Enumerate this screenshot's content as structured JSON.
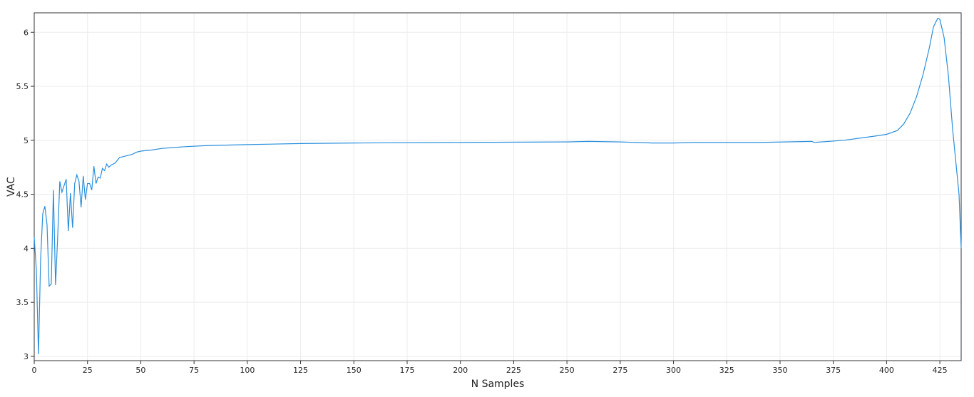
{
  "chart_data": {
    "type": "line",
    "x_label": "N Samples",
    "y_label": "VAC",
    "xlim": [
      0,
      435
    ],
    "ylim": [
      2.96,
      6.18
    ],
    "xticks": [
      0,
      25,
      50,
      75,
      100,
      125,
      150,
      175,
      200,
      225,
      250,
      275,
      300,
      325,
      350,
      375,
      400,
      425
    ],
    "yticks": [
      3,
      3.5,
      4,
      4.5,
      5,
      5.5,
      6
    ],
    "grid": true,
    "series": [
      {
        "color": "#2a8fdd",
        "x": [
          0,
          1,
          2,
          3,
          4,
          5,
          6,
          7,
          8,
          9,
          10,
          11,
          12,
          13,
          14,
          15,
          16,
          17,
          18,
          19,
          20,
          21,
          22,
          23,
          24,
          25,
          26,
          27,
          28,
          29,
          30,
          31,
          32,
          33,
          34,
          35,
          36,
          38,
          40,
          42,
          44,
          46,
          48,
          50,
          55,
          60,
          70,
          80,
          100,
          125,
          150,
          200,
          250,
          260,
          275,
          290,
          300,
          310,
          340,
          365,
          366,
          380,
          395,
          400,
          405,
          408,
          411,
          414,
          417,
          420,
          422,
          424,
          425,
          427,
          429,
          431,
          433,
          434,
          435
        ],
        "values": [
          4.1,
          3.8,
          3.02,
          3.9,
          4.32,
          4.39,
          4.22,
          3.65,
          3.67,
          4.54,
          3.66,
          4.1,
          4.62,
          4.52,
          4.58,
          4.64,
          4.16,
          4.51,
          4.19,
          4.6,
          4.68,
          4.62,
          4.38,
          4.67,
          4.45,
          4.6,
          4.6,
          4.54,
          4.76,
          4.6,
          4.66,
          4.65,
          4.74,
          4.72,
          4.78,
          4.75,
          4.77,
          4.79,
          4.84,
          4.85,
          4.86,
          4.87,
          4.89,
          4.9,
          4.91,
          4.925,
          4.94,
          4.95,
          4.96,
          4.97,
          4.975,
          4.98,
          4.985,
          4.99,
          4.985,
          4.975,
          4.975,
          4.98,
          4.98,
          4.99,
          4.98,
          5.0,
          5.04,
          5.055,
          5.09,
          5.15,
          5.25,
          5.4,
          5.6,
          5.85,
          6.05,
          6.13,
          6.12,
          5.95,
          5.6,
          5.1,
          4.7,
          4.5,
          4.0
        ]
      }
    ]
  }
}
